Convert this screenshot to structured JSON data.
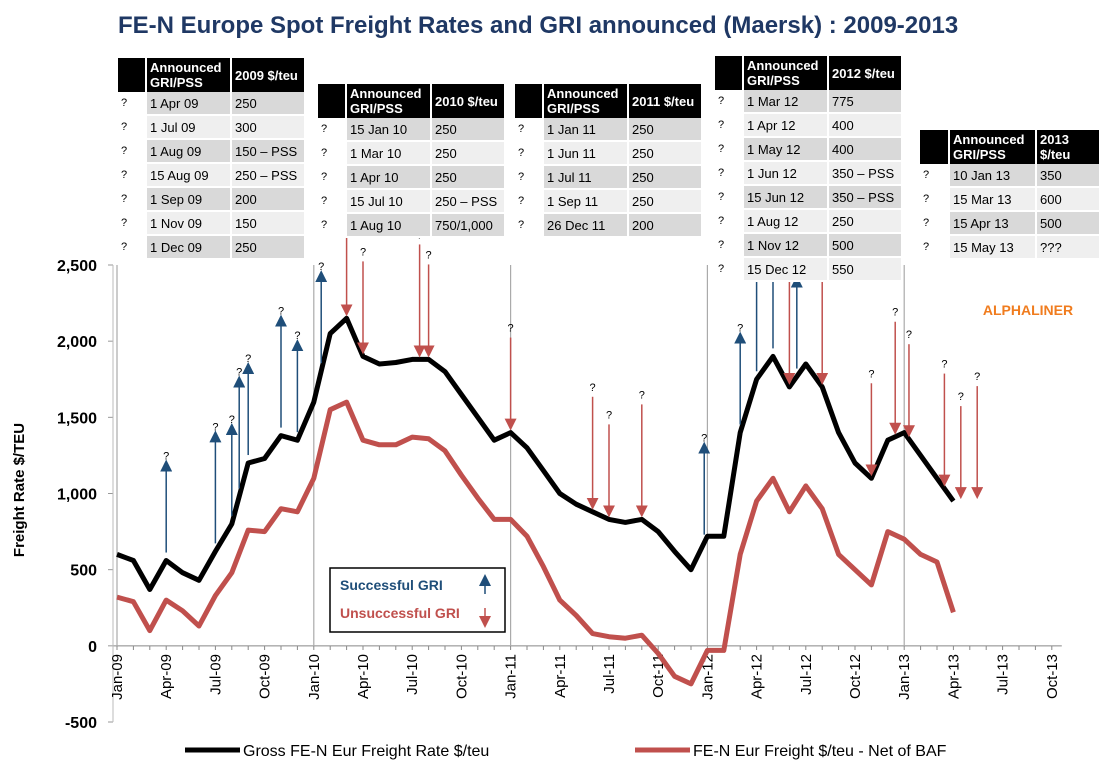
{
  "chart_data": {
    "type": "line",
    "title": "FE-N Europe Spot Freight Rates and GRI announced (Maersk) : 2009-2013",
    "y_label": "Freight Rate $/TEU",
    "watermark": "ALPHALINER",
    "categories": [
      "Jan-09",
      null,
      null,
      "Apr-09",
      null,
      null,
      "Jul-09",
      null,
      null,
      "Oct-09",
      null,
      null,
      "Jan-10",
      null,
      null,
      "Apr-10",
      null,
      null,
      "Jul-10",
      null,
      null,
      "Oct-10",
      null,
      null,
      "Jan-11",
      null,
      null,
      "Apr-11",
      null,
      null,
      "Jul-11",
      null,
      null,
      "Oct-11",
      null,
      null,
      "Jan-12",
      null,
      null,
      "Apr-12",
      null,
      null,
      "Jul-12",
      null,
      null,
      "Oct-12",
      null,
      null,
      "Jan-13",
      null,
      null,
      "Apr-13",
      null,
      null,
      "Jul-13",
      null,
      null,
      "Oct-13"
    ],
    "ylim": [
      -500,
      2500
    ],
    "yticks": [
      -500,
      0,
      500,
      {
        "value": 1000,
        "label": "1,000"
      },
      {
        "value": 1500,
        "label": "1,500"
      },
      {
        "value": 2000,
        "label": "2,000"
      },
      {
        "value": 2500,
        "label": "2,500"
      }
    ],
    "series": [
      {
        "name": "Gross FE-N Eur Freight Rate $/teu",
        "color": "#000000",
        "values": [
          600,
          560,
          370,
          560,
          480,
          430,
          620,
          800,
          1200,
          1230,
          1380,
          1350,
          1600,
          2050,
          2150,
          1900,
          1850,
          1860,
          1880,
          1880,
          1800,
          1650,
          1500,
          1350,
          1400,
          1300,
          1150,
          1000,
          930,
          880,
          830,
          810,
          830,
          750,
          620,
          500,
          720,
          720,
          1400,
          1750,
          1900,
          1700,
          1850,
          1700,
          1400,
          1200,
          1100,
          1350,
          1400,
          1250,
          1100,
          950,
          null,
          null,
          null,
          null,
          null,
          null
        ]
      },
      {
        "name": "FE-N Eur Freight $/teu - Net of BAF",
        "color": "#c0504d",
        "values": [
          320,
          290,
          100,
          300,
          230,
          130,
          330,
          480,
          760,
          750,
          900,
          880,
          1100,
          1550,
          1600,
          1350,
          1320,
          1320,
          1370,
          1360,
          1280,
          1120,
          970,
          830,
          830,
          720,
          520,
          300,
          200,
          80,
          60,
          50,
          70,
          -50,
          -200,
          -250,
          -30,
          -30,
          600,
          950,
          1100,
          880,
          1050,
          900,
          600,
          500,
          400,
          750,
          700,
          600,
          550,
          220,
          null,
          null,
          null,
          null,
          null,
          null
        ]
      }
    ],
    "gri_legend": {
      "successful": "Successful GRI",
      "unsuccessful": "Unsuccessful GRI"
    },
    "gri_colors": {
      "successful": "#1f4e79",
      "unsuccessful": "#c0504d"
    },
    "gri_tables": [
      {
        "marker": "?",
        "header": [
          "Announced GRI/PSS",
          "2009 $/teu"
        ],
        "rows": [
          {
            "date": "1 Apr 09",
            "amount": "250",
            "status": "successful"
          },
          {
            "date": "1 Jul 09",
            "amount": "300",
            "status": "successful"
          },
          {
            "date": "1 Aug 09",
            "amount": "150 – PSS",
            "status": "successful"
          },
          {
            "date": "15 Aug 09",
            "amount": "250 – PSS",
            "status": "successful"
          },
          {
            "date": "1 Sep 09",
            "amount": "200",
            "status": "successful"
          },
          {
            "date": "1 Nov 09",
            "amount": "150",
            "status": "successful"
          },
          {
            "date": "1 Dec 09",
            "amount": "250",
            "status": "successful"
          }
        ]
      },
      {
        "marker": "?",
        "header": [
          "Announced GRI/PSS",
          "2010 $/teu"
        ],
        "rows": [
          {
            "date": "15 Jan 10",
            "amount": "250",
            "status": "successful"
          },
          {
            "date": "1 Mar 10",
            "amount": "250",
            "status": "unsuccessful"
          },
          {
            "date": "1 Apr 10",
            "amount": "250",
            "status": "unsuccessful"
          },
          {
            "date": "15 Jul 10",
            "amount": "250 – PSS",
            "status": "unsuccessful"
          },
          {
            "date": "1 Aug 10",
            "amount": "750/1,000",
            "status": "unsuccessful"
          }
        ]
      },
      {
        "marker": "?",
        "header": [
          "Announced GRI/PSS",
          "2011 $/teu"
        ],
        "rows": [
          {
            "date": "1 Jan 11",
            "amount": "250",
            "status": "unsuccessful"
          },
          {
            "date": "1 Jun 11",
            "amount": "250",
            "status": "unsuccessful"
          },
          {
            "date": "1 Jul 11",
            "amount": "250",
            "status": "unsuccessful"
          },
          {
            "date": "1 Sep 11",
            "amount": "250",
            "status": "unsuccessful"
          },
          {
            "date": "26 Dec 11",
            "amount": "200",
            "status": "successful"
          }
        ]
      },
      {
        "marker": "?",
        "header": [
          "Announced GRI/PSS",
          "2012 $/teu"
        ],
        "rows": [
          {
            "date": "1 Mar 12",
            "amount": "775",
            "status": "successful"
          },
          {
            "date": "1 Apr 12",
            "amount": "400",
            "status": "successful"
          },
          {
            "date": "1 May 12",
            "amount": "400",
            "status": "successful"
          },
          {
            "date": "1 Jun 12",
            "amount": "350 – PSS",
            "status": "unsuccessful"
          },
          {
            "date": "15 Jun 12",
            "amount": "350 – PSS",
            "status": "successful"
          },
          {
            "date": "1 Aug 12",
            "amount": "250",
            "status": "unsuccessful"
          },
          {
            "date": "1 Nov 12",
            "amount": "500",
            "status": "unsuccessful"
          },
          {
            "date": "15 Dec 12",
            "amount": "550",
            "status": "unsuccessful"
          }
        ]
      },
      {
        "marker": "?",
        "header": [
          "Announced GRI/PSS",
          "2013 $/teu"
        ],
        "rows": [
          {
            "date": "10 Jan 13",
            "amount": "350",
            "status": "unsuccessful"
          },
          {
            "date": "15 Mar 13",
            "amount": "600",
            "status": "unsuccessful"
          },
          {
            "date": "15 Apr 13",
            "amount": "500",
            "status": "unsuccessful"
          },
          {
            "date": "15 May 13",
            "amount": "???",
            "status": "unsuccessful"
          }
        ]
      }
    ]
  }
}
